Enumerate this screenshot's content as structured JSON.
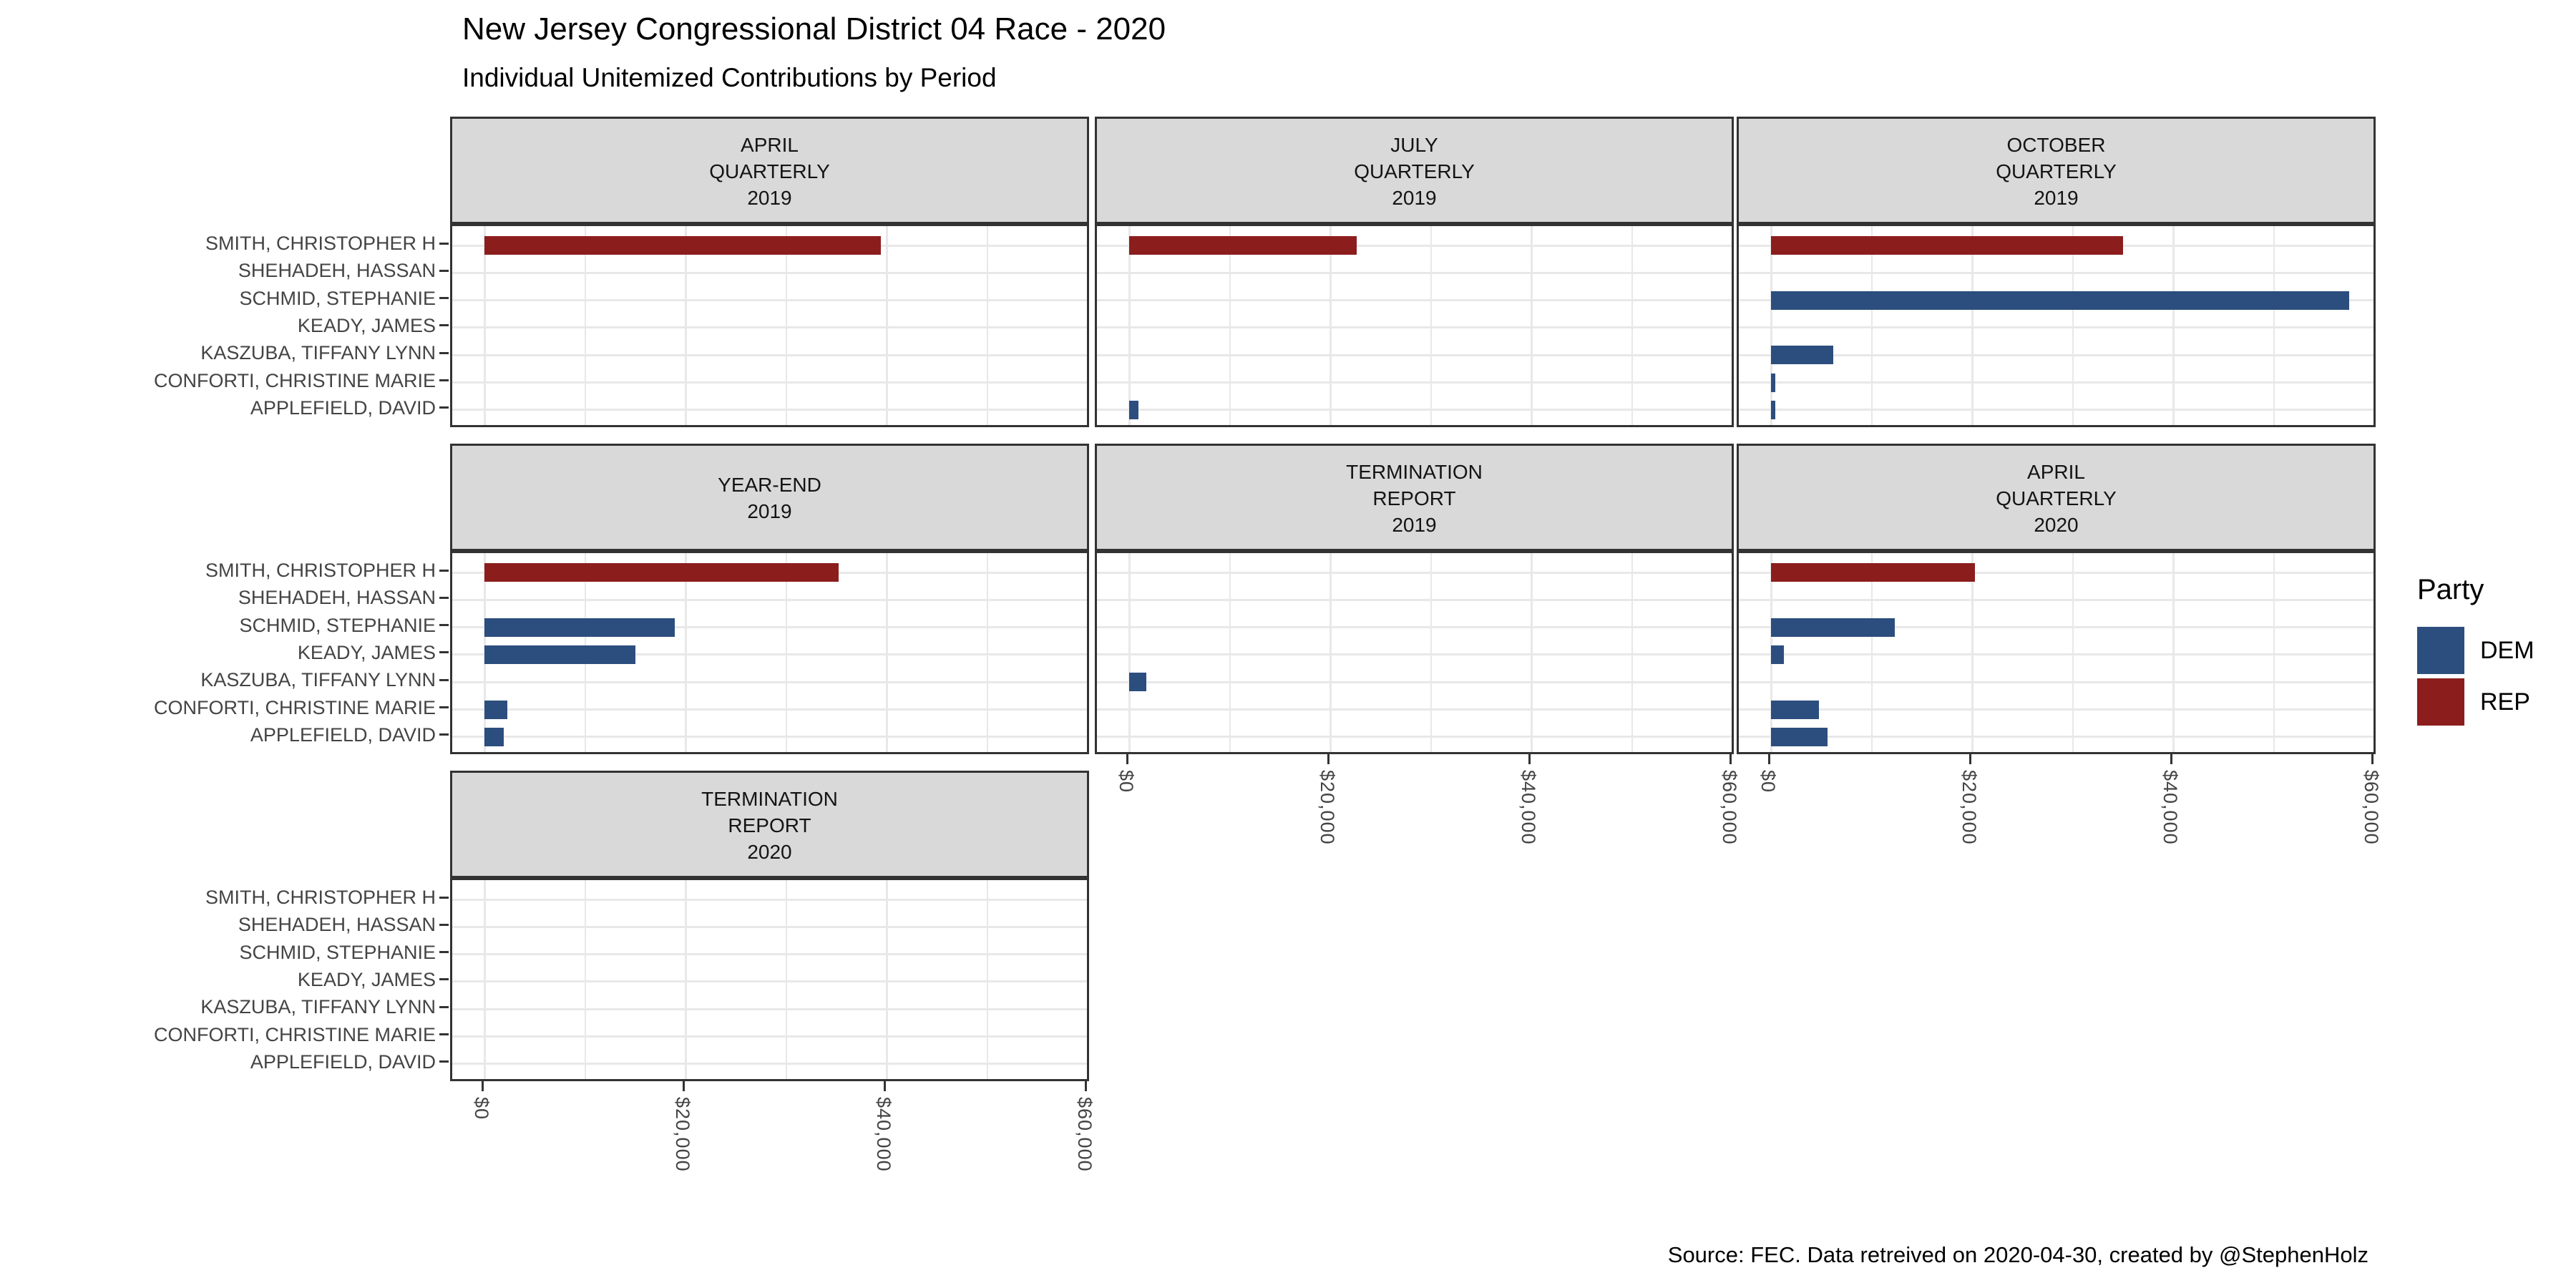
{
  "chart_data": {
    "type": "bar",
    "orientation": "horizontal",
    "title": "New Jersey Congressional District 04 Race - 2020",
    "subtitle": "Individual Unitemized Contributions by Period",
    "caption": "Source: FEC. Data retreived on 2020-04-30, created by @StephenHolz",
    "categories_top_to_bottom": [
      "SMITH, CHRISTOPHER H",
      "SHEHADEH, HASSAN",
      "SCHMID, STEPHANIE",
      "KEADY, JAMES",
      "KASZUBA, TIFFANY LYNN",
      "CONFORTI, CHRISTINE MARIE",
      "APPLEFIELD, DAVID"
    ],
    "x_axis": {
      "tick_labels": [
        "$0",
        "$20,000",
        "$40,000",
        "$60,000"
      ],
      "tick_values": [
        0,
        20000,
        40000,
        60000
      ],
      "xlim": [
        0,
        60000
      ],
      "minor_grid_step": 10000,
      "label_angle_deg": 90
    },
    "grid": "on",
    "legend_position": "right",
    "facets": [
      {
        "row": 0,
        "col": 0,
        "label_lines": [
          "APRIL",
          "QUARTERLY",
          "2019"
        ],
        "bars": [
          {
            "candidate": "SMITH, CHRISTOPHER H",
            "party": "REP",
            "value": 39400
          }
        ]
      },
      {
        "row": 0,
        "col": 1,
        "label_lines": [
          "JULY",
          "QUARTERLY",
          "2019"
        ],
        "bars": [
          {
            "candidate": "SMITH, CHRISTOPHER H",
            "party": "REP",
            "value": 22600
          },
          {
            "candidate": "APPLEFIELD, DAVID",
            "party": "DEM",
            "value": 900
          }
        ]
      },
      {
        "row": 0,
        "col": 2,
        "label_lines": [
          "OCTOBER",
          "QUARTERLY",
          "2019"
        ],
        "bars": [
          {
            "candidate": "SMITH, CHRISTOPHER H",
            "party": "REP",
            "value": 35000
          },
          {
            "candidate": "SCHMID, STEPHANIE",
            "party": "DEM",
            "value": 57500
          },
          {
            "candidate": "KASZUBA, TIFFANY LYNN",
            "party": "DEM",
            "value": 6200
          },
          {
            "candidate": "CONFORTI, CHRISTINE MARIE",
            "party": "DEM",
            "value": 400
          },
          {
            "candidate": "APPLEFIELD, DAVID",
            "party": "DEM",
            "value": 400
          }
        ]
      },
      {
        "row": 1,
        "col": 0,
        "label_lines": [
          "YEAR-END",
          "2019"
        ],
        "bars": [
          {
            "candidate": "SMITH, CHRISTOPHER H",
            "party": "REP",
            "value": 35200
          },
          {
            "candidate": "SCHMID, STEPHANIE",
            "party": "DEM",
            "value": 18900
          },
          {
            "candidate": "KEADY, JAMES",
            "party": "DEM",
            "value": 15000
          },
          {
            "candidate": "CONFORTI, CHRISTINE MARIE",
            "party": "DEM",
            "value": 2300
          },
          {
            "candidate": "APPLEFIELD, DAVID",
            "party": "DEM",
            "value": 1900
          }
        ]
      },
      {
        "row": 1,
        "col": 1,
        "label_lines": [
          "TERMINATION",
          "REPORT",
          "2019"
        ],
        "bars": [
          {
            "candidate": "KASZUBA, TIFFANY LYNN",
            "party": "DEM",
            "value": 1700
          }
        ]
      },
      {
        "row": 1,
        "col": 2,
        "label_lines": [
          "APRIL",
          "QUARTERLY",
          "2020"
        ],
        "bars": [
          {
            "candidate": "SMITH, CHRISTOPHER H",
            "party": "REP",
            "value": 20300
          },
          {
            "candidate": "SCHMID, STEPHANIE",
            "party": "DEM",
            "value": 12300
          },
          {
            "candidate": "KEADY, JAMES",
            "party": "DEM",
            "value": 1300
          },
          {
            "candidate": "CONFORTI, CHRISTINE MARIE",
            "party": "DEM",
            "value": 4800
          },
          {
            "candidate": "APPLEFIELD, DAVID",
            "party": "DEM",
            "value": 5600
          }
        ]
      },
      {
        "row": 2,
        "col": 0,
        "label_lines": [
          "TERMINATION",
          "REPORT",
          "2020"
        ],
        "bars": []
      }
    ]
  },
  "legend": {
    "title": "Party",
    "entries": [
      {
        "label": "DEM",
        "color": "#2C4E7E"
      },
      {
        "label": "REP",
        "color": "#8C1D1D"
      }
    ]
  },
  "colors": {
    "dem": "#2C4E7E",
    "rep": "#8C1D1D",
    "strip_bg": "#D9D9D9",
    "panel_border": "#333333",
    "gridline": "#E8E8E8",
    "axis_text": "#444444"
  }
}
